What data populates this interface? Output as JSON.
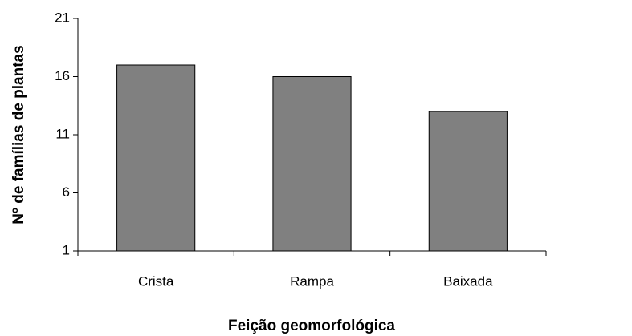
{
  "chart_data": {
    "type": "bar",
    "x_label": "Feição geomorfológica",
    "y_label": "Nº de famílias de plantas",
    "categories": [
      "Crista",
      "Rampa",
      "Baixada"
    ],
    "values": [
      17,
      16,
      13
    ],
    "color": "#808080",
    "ylim": [
      1,
      21
    ],
    "yticks": [
      1,
      6,
      11,
      16,
      21
    ],
    "grid": false
  }
}
